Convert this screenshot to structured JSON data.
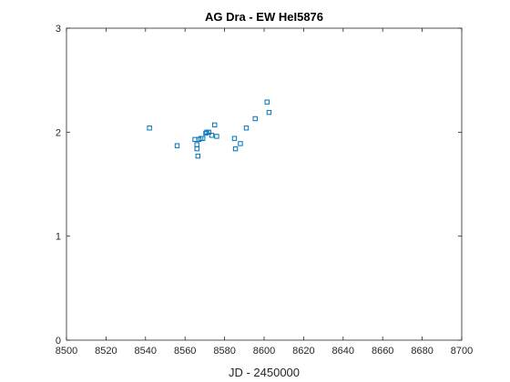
{
  "chart_data": {
    "type": "scatter",
    "title": "AG Dra - EW HeI5876",
    "xlabel": "JD - 2450000",
    "ylabel": "",
    "xlim": [
      8500,
      8700
    ],
    "ylim": [
      0,
      3
    ],
    "xticks": [
      8500,
      8520,
      8540,
      8560,
      8580,
      8600,
      8620,
      8640,
      8660,
      8680,
      8700
    ],
    "yticks": [
      0,
      1,
      2,
      3
    ],
    "grid": false,
    "marker": "square",
    "marker_color": "#0072BD",
    "series": [
      {
        "x": [
          8542,
          8556,
          8565,
          8566,
          8566,
          8566.5,
          8567,
          8568,
          8569,
          8570.5,
          8571,
          8572,
          8573.5,
          8575,
          8576,
          8585,
          8585.5,
          8588,
          8591,
          8595.5,
          8601.5,
          8602.5
        ],
        "y": [
          2.04,
          1.87,
          1.93,
          1.88,
          1.84,
          1.77,
          1.93,
          1.94,
          1.94,
          1.99,
          2.0,
          2.0,
          1.97,
          2.07,
          1.96,
          1.94,
          1.84,
          1.89,
          2.04,
          2.13,
          2.29,
          2.19
        ]
      }
    ]
  }
}
